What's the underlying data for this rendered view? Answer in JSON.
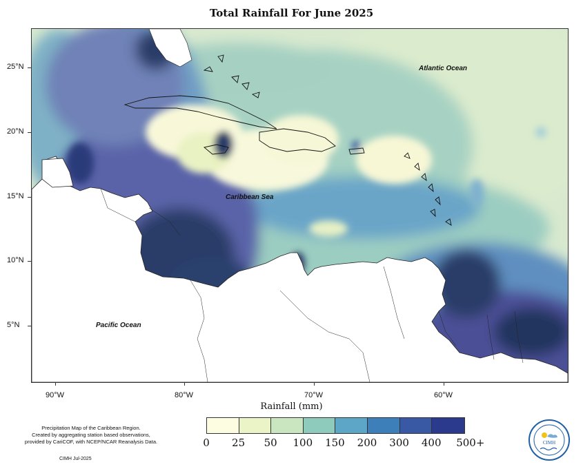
{
  "title": "Total Rainfall For June 2025",
  "labels": {
    "atlantic": "Atlantic Ocean",
    "caribbean": "Caribbean Sea",
    "pacific": "Pacific Ocean"
  },
  "y_ticks": [
    "25°N",
    "20°N",
    "15°N",
    "10°N",
    "5°N"
  ],
  "x_ticks": [
    "90°W",
    "80°W",
    "70°W",
    "60°W"
  ],
  "xlabel": "Rainfall (mm)",
  "legend": {
    "labels": [
      "0",
      "25",
      "50",
      "100",
      "150",
      "200",
      "300",
      "400",
      "500+"
    ],
    "colors": [
      "#fdfde2",
      "#ebf4c7",
      "#c9e6c0",
      "#8fcbbd",
      "#5ea6c7",
      "#3c7fb9",
      "#3a59a4",
      "#2b3a8c",
      "#17244f"
    ]
  },
  "caption": {
    "line1": "Precipitation Map of the Caribbean Region.",
    "line2": "Created by aggregating station based observations,",
    "line3": "provided by CariCOF, with NCEP/NCAR Reanalysis Data."
  },
  "credit": "CIMH Jul-2025",
  "logo": {
    "text": "CIMH",
    "icon": "cimh-logo-icon"
  }
}
